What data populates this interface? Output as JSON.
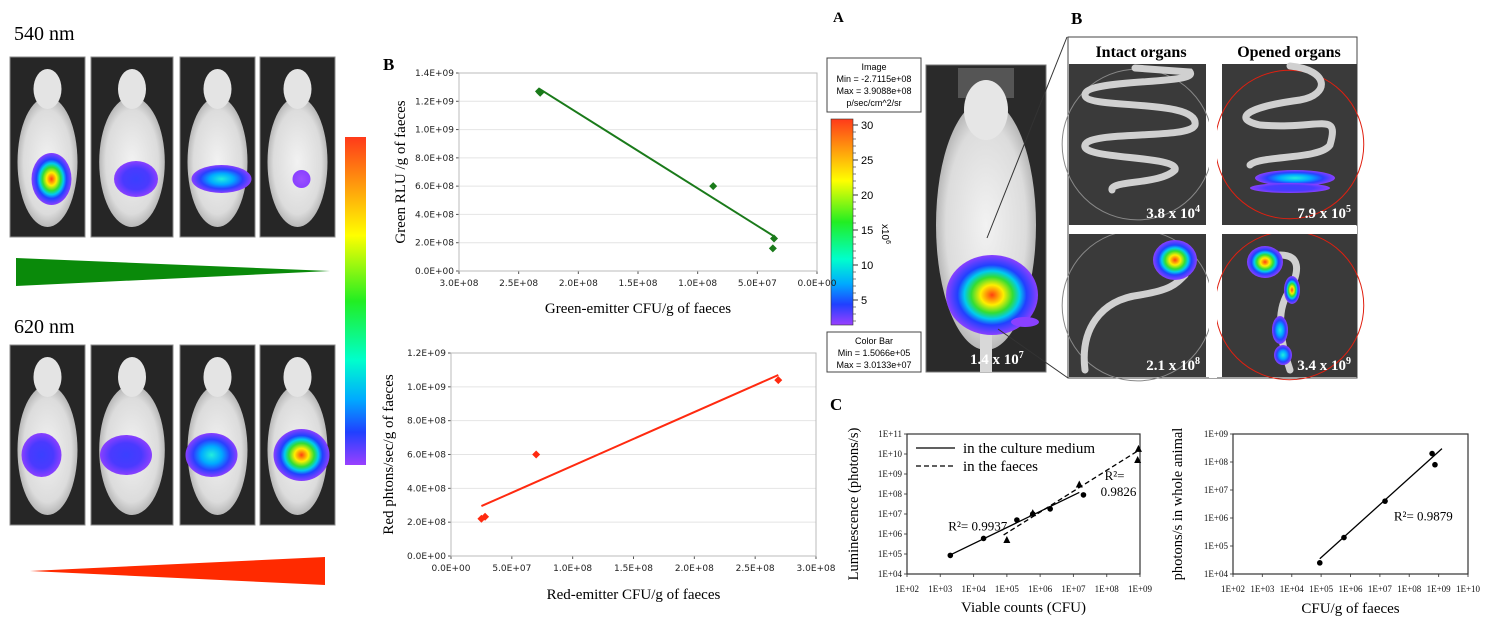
{
  "left_panel": {
    "green_label": "540 nm",
    "red_label": "620 nm",
    "green_color": "#0a8a0a",
    "red_color": "#ff2a00"
  },
  "panel_labels": {
    "b_charts": "B",
    "a": "A",
    "b_organs": "B",
    "c": "C"
  },
  "panel_a": {
    "image_box": [
      "Image",
      "Min = -2.7115e+08",
      "Max = 3.9088e+08",
      "p/sec/cm^2/sr"
    ],
    "colorbar_ticks": [
      "30",
      "25",
      "20",
      "15",
      "10",
      "5"
    ],
    "colorbar_unit_base": "x10",
    "colorbar_unit_exp": "6",
    "colorbar_box": [
      "Color Bar",
      "Min = 1.5066e+05",
      "Max = 3.0133e+07"
    ],
    "mouse_value": {
      "mantissa": "1.4 x 10",
      "exp": "7"
    }
  },
  "panel_b_organs": {
    "headers": [
      "Intact organs",
      "Opened organs"
    ],
    "values": [
      {
        "mantissa": "3.8 x 10",
        "exp": "4"
      },
      {
        "mantissa": "7.9 x 10",
        "exp": "5"
      },
      {
        "mantissa": "2.1 x 10",
        "exp": "8"
      },
      {
        "mantissa": "3.4 x 10",
        "exp": "9"
      }
    ]
  },
  "chart_data": [
    {
      "type": "scatter",
      "xlabel": "Green-emitter CFU/g of faeces",
      "ylabel": "Green RLU /g of faeces",
      "xlim": [
        300000000,
        0
      ],
      "ylim": [
        0,
        1400000000
      ],
      "xticks": [
        "3.0E+08",
        "2.5E+08",
        "2.0E+08",
        "1.5E+08",
        "1.0E+08",
        "5.0E+07",
        "0.0E+00"
      ],
      "yticks": [
        "0.0E+00",
        "2.0E+08",
        "4.0E+08",
        "6.0E+08",
        "8.0E+08",
        "1.0E+09",
        "1.2E+09",
        "1.4E+09"
      ],
      "grid": true,
      "color": "#1a7a1a",
      "points": {
        "x": [
          233000000,
          232000000,
          87000000,
          36000000,
          37000000
        ],
        "y": [
          1270000000,
          1260000000,
          600000000,
          230000000,
          160000000
        ]
      },
      "trendline": {
        "x": [
          233000000,
          35000000
        ],
        "y": [
          1290000000,
          240000000
        ]
      }
    },
    {
      "type": "scatter",
      "xlabel": "Red-emitter CFU/g of faeces",
      "ylabel": "Red phtons/sec/g of faeces",
      "xlim": [
        0,
        300000000
      ],
      "ylim": [
        0,
        1200000000
      ],
      "xticks": [
        "0.0E+00",
        "5.0E+07",
        "1.0E+08",
        "1.5E+08",
        "2.0E+08",
        "2.5E+08",
        "3.0E+08"
      ],
      "yticks": [
        "0.0E+00",
        "2.0E+08",
        "4.0E+08",
        "6.0E+08",
        "8.0E+08",
        "1.0E+09",
        "1.2E+09"
      ],
      "grid": true,
      "color": "#ff2a10",
      "points": {
        "x": [
          25000000,
          28000000,
          70000000,
          269000000
        ],
        "y": [
          220000000,
          232000000,
          600000000,
          1040000000
        ]
      },
      "trendline": {
        "x": [
          25000000,
          269000000
        ],
        "y": [
          295000000,
          1070000000
        ]
      }
    },
    {
      "type": "scatter",
      "xscale": "log",
      "yscale": "log",
      "xlabel": "Viable counts (CFU)",
      "ylabel": "Luminescence (photons/s)",
      "xlim": [
        100,
        1000000000
      ],
      "ylim": [
        10000,
        100000000000
      ],
      "xticks": [
        "1E+02",
        "1E+03",
        "1E+04",
        "1E+05",
        "1E+06",
        "1E+07",
        "1E+08",
        "1E+09"
      ],
      "yticks": [
        "1E+04",
        "1E+05",
        "1E+06",
        "1E+07",
        "1E+08",
        "1E+09",
        "1E+10",
        "1E+11"
      ],
      "grid": false,
      "legend_position": "top-left",
      "series": [
        {
          "name": "in the culture medium",
          "marker": "circle",
          "line": "solid",
          "x": [
            2000,
            20000,
            200000,
            600000,
            2000000,
            20000000
          ],
          "y": [
            85000,
            600000,
            5000000,
            10000000,
            18000000,
            90000000
          ],
          "trendline": {
            "x": [
              2000,
              15000000
            ],
            "y": [
              90000,
              120000000
            ]
          },
          "annotation": "R²= 0.9937"
        },
        {
          "name": "in the faeces",
          "marker": "triangle",
          "line": "dashed",
          "x": [
            100000,
            600000,
            15000000,
            900000000,
            850000000
          ],
          "y": [
            500000,
            11000000,
            300000000,
            18000000000,
            5000000000
          ],
          "trendline": {
            "x": [
              80000,
              900000000
            ],
            "y": [
              900000,
              15000000000
            ]
          },
          "annotation_lines": [
            "R²=",
            "0.9826"
          ]
        }
      ]
    },
    {
      "type": "scatter",
      "xscale": "log",
      "yscale": "log",
      "xlabel": "CFU/g of faeces",
      "ylabel": "photons/s in whole animal",
      "xlim": [
        100,
        10000000000
      ],
      "ylim": [
        10000,
        1000000000
      ],
      "xticks": [
        "1E+02",
        "1E+03",
        "1E+04",
        "1E+05",
        "1E+06",
        "1E+07",
        "1E+08",
        "1E+09",
        "1E+10"
      ],
      "yticks": [
        "1E+04",
        "1E+05",
        "1E+06",
        "1E+07",
        "1E+08",
        "1E+09"
      ],
      "grid": false,
      "series": [
        {
          "marker": "circle",
          "line": "solid",
          "x": [
            90000,
            600000,
            15000000,
            600000000,
            750000000
          ],
          "y": [
            25000,
            200000,
            4000000,
            200000000,
            80000000
          ],
          "trendline": {
            "x": [
              90000,
              1300000000
            ],
            "y": [
              35000,
              300000000
            ]
          },
          "annotation": "R²= 0.9879"
        }
      ]
    }
  ]
}
